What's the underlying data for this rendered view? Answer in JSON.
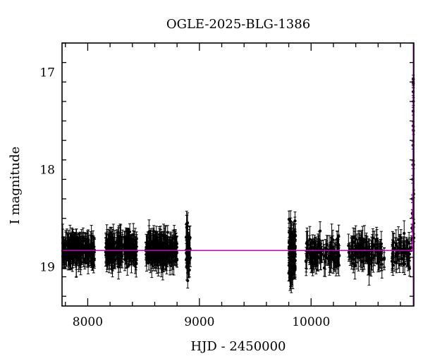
{
  "chart_data": {
    "type": "scatter",
    "title": "OGLE-2025-BLG-1386",
    "xlabel": "HJD - 2450000",
    "ylabel": "I magnitude",
    "xlim": [
      7770,
      10920
    ],
    "ylim": [
      19.4,
      16.7
    ],
    "y_inverted": true,
    "grid": false,
    "x_ticks": [
      8000,
      9000,
      10000
    ],
    "x_minor_step": 200,
    "y_ticks": [
      17,
      18,
      19
    ],
    "y_minor_step": 0.2,
    "baseline_mag": 18.83,
    "model_color": "#c000c0",
    "point_color": "#000000",
    "seasons": [
      {
        "x": [
          7775,
          8060
        ],
        "n": 220,
        "mag_mean": 18.83,
        "mag_sd": 0.06
      },
      {
        "x": [
          8160,
          8440
        ],
        "n": 200,
        "mag_mean": 18.81,
        "mag_sd": 0.07
      },
      {
        "x": [
          8520,
          8800
        ],
        "n": 200,
        "mag_mean": 18.82,
        "mag_sd": 0.07
      },
      {
        "x": [
          8880,
          8920
        ],
        "n": 35,
        "mag_mean": 18.83,
        "mag_sd": 0.12
      },
      {
        "x": [
          9800,
          9860
        ],
        "n": 90,
        "mag_mean": 18.85,
        "mag_sd": 0.14
      },
      {
        "x": [
          9950,
          10260
        ],
        "n": 110,
        "mag_mean": 18.84,
        "mag_sd": 0.07
      },
      {
        "x": [
          10330,
          10660
        ],
        "n": 110,
        "mag_mean": 18.85,
        "mag_sd": 0.07
      },
      {
        "x": [
          10720,
          10890
        ],
        "n": 60,
        "mag_mean": 18.84,
        "mag_sd": 0.07
      }
    ],
    "event": {
      "t0": 10915,
      "points": [
        {
          "x": 10895,
          "mag": 18.8
        },
        {
          "x": 10900,
          "mag": 18.72
        },
        {
          "x": 10903,
          "mag": 18.6
        },
        {
          "x": 10906,
          "mag": 18.45
        },
        {
          "x": 10908,
          "mag": 18.3
        },
        {
          "x": 10910,
          "mag": 18.1
        },
        {
          "x": 10911,
          "mag": 17.95
        },
        {
          "x": 10912,
          "mag": 17.75
        },
        {
          "x": 10913,
          "mag": 17.55
        },
        {
          "x": 10913.5,
          "mag": 17.4
        },
        {
          "x": 10914,
          "mag": 17.2
        },
        {
          "x": 10914.5,
          "mag": 17.1
        },
        {
          "x": 10915,
          "mag": 17.07
        },
        {
          "x": 10915.5,
          "mag": 17.12
        },
        {
          "x": 10916,
          "mag": 17.3
        },
        {
          "x": 10916.5,
          "mag": 17.6
        },
        {
          "x": 10917,
          "mag": 17.95
        },
        {
          "x": 10918,
          "mag": 18.25
        },
        {
          "x": 10919,
          "mag": 18.55
        },
        {
          "x": 10919.5,
          "mag": 18.7
        }
      ]
    }
  }
}
